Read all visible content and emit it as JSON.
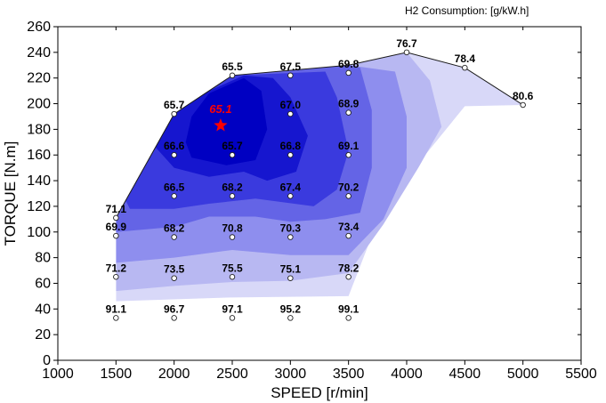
{
  "header": {
    "units_label": "H2 Consumption: [g/kW.h]"
  },
  "chart_data": {
    "type": "contour",
    "title": "",
    "xlabel": "SPEED [r/min]",
    "ylabel": "TORQUE [N.m]",
    "xlim": [
      1000,
      5500
    ],
    "ylim": [
      0,
      260
    ],
    "xticks": [
      1000,
      1500,
      2000,
      2500,
      3000,
      3500,
      4000,
      4500,
      5000,
      5500
    ],
    "yticks": [
      0,
      20,
      40,
      60,
      80,
      100,
      120,
      140,
      160,
      180,
      200,
      220,
      240,
      260
    ],
    "grid": false,
    "points": [
      {
        "x": 1500,
        "y": 33,
        "value": "91.1"
      },
      {
        "x": 2000,
        "y": 33,
        "value": "96.7"
      },
      {
        "x": 2500,
        "y": 33,
        "value": "97.1"
      },
      {
        "x": 3000,
        "y": 33,
        "value": "95.2"
      },
      {
        "x": 3500,
        "y": 33,
        "value": "99.1"
      },
      {
        "x": 1500,
        "y": 65,
        "value": "71.2"
      },
      {
        "x": 2000,
        "y": 64,
        "value": "73.5"
      },
      {
        "x": 2500,
        "y": 65,
        "value": "75.5"
      },
      {
        "x": 3000,
        "y": 64,
        "value": "75.1"
      },
      {
        "x": 3500,
        "y": 65,
        "value": "78.2"
      },
      {
        "x": 1500,
        "y": 97,
        "value": "69.9"
      },
      {
        "x": 2000,
        "y": 96,
        "value": "68.2"
      },
      {
        "x": 2500,
        "y": 96,
        "value": "70.8"
      },
      {
        "x": 3000,
        "y": 96,
        "value": "70.3"
      },
      {
        "x": 3500,
        "y": 97,
        "value": "73.4"
      },
      {
        "x": 1500,
        "y": 111,
        "value": "71.1"
      },
      {
        "x": 2000,
        "y": 128,
        "value": "66.5"
      },
      {
        "x": 2500,
        "y": 128,
        "value": "68.2"
      },
      {
        "x": 3000,
        "y": 128,
        "value": "67.4"
      },
      {
        "x": 3500,
        "y": 128,
        "value": "70.2"
      },
      {
        "x": 2000,
        "y": 160,
        "value": "66.6"
      },
      {
        "x": 2500,
        "y": 160,
        "value": "65.7"
      },
      {
        "x": 3000,
        "y": 160,
        "value": "66.8"
      },
      {
        "x": 3500,
        "y": 160,
        "value": "69.1"
      },
      {
        "x": 2000,
        "y": 192,
        "value": "65.7"
      },
      {
        "x": 3000,
        "y": 192,
        "value": "67.0"
      },
      {
        "x": 3500,
        "y": 193,
        "value": "68.9"
      },
      {
        "x": 2500,
        "y": 222,
        "value": "65.5"
      },
      {
        "x": 3000,
        "y": 222,
        "value": "67.5"
      },
      {
        "x": 3500,
        "y": 224,
        "value": "69.8"
      },
      {
        "x": 4000,
        "y": 240,
        "value": "76.7"
      },
      {
        "x": 4500,
        "y": 228,
        "value": "78.4"
      },
      {
        "x": 5000,
        "y": 199,
        "value": "80.6"
      }
    ],
    "minimum": {
      "x": 2400,
      "y": 183,
      "value": "65.1",
      "color": "#ff0000"
    },
    "envelope": [
      {
        "x": 1500,
        "y": 111
      },
      {
        "x": 2000,
        "y": 192
      },
      {
        "x": 2500,
        "y": 222
      },
      {
        "x": 3500,
        "y": 230
      },
      {
        "x": 4000,
        "y": 240
      },
      {
        "x": 4500,
        "y": 228
      },
      {
        "x": 5000,
        "y": 199
      },
      {
        "x": 3500,
        "y": 33
      },
      {
        "x": 1500,
        "y": 33
      }
    ],
    "levels": [
      {
        "color": "#d8d8f8",
        "boundary": [
          [
            1500,
            46
          ],
          [
            2500,
            49
          ],
          [
            3500,
            50
          ],
          [
            3800,
            120
          ],
          [
            4500,
            198
          ],
          [
            5000,
            199
          ],
          [
            4500,
            228
          ],
          [
            4000,
            240
          ],
          [
            3500,
            230
          ],
          [
            2500,
            222
          ],
          [
            2000,
            192
          ],
          [
            1500,
            111
          ]
        ]
      },
      {
        "color": "#b8b8f2",
        "boundary": [
          [
            1500,
            54
          ],
          [
            2000,
            58
          ],
          [
            2500,
            61
          ],
          [
            3000,
            62
          ],
          [
            3500,
            68
          ],
          [
            3800,
            106
          ],
          [
            4100,
            150
          ],
          [
            4300,
            182
          ],
          [
            4200,
            218
          ],
          [
            4000,
            240
          ],
          [
            3500,
            230
          ],
          [
            2500,
            222
          ],
          [
            2000,
            192
          ],
          [
            1500,
            111
          ]
        ]
      },
      {
        "color": "#8e8eee",
        "boundary": [
          [
            1500,
            76
          ],
          [
            2000,
            80
          ],
          [
            2500,
            86
          ],
          [
            3000,
            82
          ],
          [
            3500,
            82
          ],
          [
            3800,
            110
          ],
          [
            4000,
            150
          ],
          [
            4000,
            190
          ],
          [
            3900,
            225
          ],
          [
            3500,
            230
          ],
          [
            2500,
            222
          ],
          [
            2000,
            192
          ],
          [
            1500,
            111
          ]
        ]
      },
      {
        "color": "#6464e6",
        "boundary": [
          [
            1500,
            100
          ],
          [
            2000,
            104
          ],
          [
            2300,
            112
          ],
          [
            2700,
            112
          ],
          [
            3000,
            108
          ],
          [
            3300,
            110
          ],
          [
            3600,
            115
          ],
          [
            3700,
            150
          ],
          [
            3700,
            195
          ],
          [
            3600,
            228
          ],
          [
            3500,
            230
          ],
          [
            2500,
            222
          ],
          [
            2000,
            192
          ],
          [
            1500,
            111
          ]
        ]
      },
      {
        "color": "#3a3ade",
        "boundary": [
          [
            1620,
            118
          ],
          [
            2000,
            118
          ],
          [
            2300,
            122
          ],
          [
            2700,
            126
          ],
          [
            3200,
            120
          ],
          [
            3400,
            133
          ],
          [
            3500,
            163
          ],
          [
            3400,
            205
          ],
          [
            3300,
            225
          ],
          [
            2500,
            222
          ],
          [
            2000,
            192
          ],
          [
            1580,
            125
          ]
        ]
      },
      {
        "color": "#1616cf",
        "boundary": [
          [
            2000,
            150
          ],
          [
            2300,
            143
          ],
          [
            2600,
            147
          ],
          [
            2800,
            140
          ],
          [
            3050,
            147
          ],
          [
            3150,
            175
          ],
          [
            3000,
            205
          ],
          [
            2850,
            220
          ],
          [
            2600,
            222
          ],
          [
            2300,
            210
          ],
          [
            2000,
            192
          ],
          [
            1800,
            170
          ]
        ]
      },
      {
        "color": "#0000c2",
        "boundary": [
          [
            2150,
            158
          ],
          [
            2450,
            152
          ],
          [
            2700,
            156
          ],
          [
            2800,
            180
          ],
          [
            2750,
            210
          ],
          [
            2600,
            220
          ],
          [
            2300,
            208
          ],
          [
            2150,
            190
          ],
          [
            2100,
            170
          ]
        ]
      }
    ]
  }
}
